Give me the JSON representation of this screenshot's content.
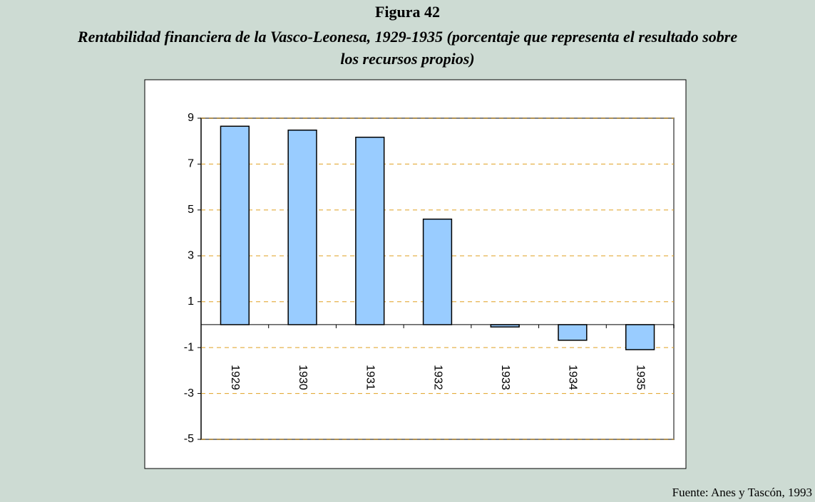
{
  "chart_data": {
    "type": "bar",
    "title": "Figura 42",
    "subtitle": "Rentabilidad financiera de la Vasco-Leonesa, 1929-1935 (porcentaje que representa el resultado sobre los recursos propios)",
    "source": "Fuente: Anes y Tascón, 1993",
    "categories": [
      "1929",
      "1930",
      "1931",
      "1932",
      "1933",
      "1934",
      "1935"
    ],
    "values": [
      8.65,
      8.48,
      8.17,
      4.6,
      -0.1,
      -0.68,
      -1.09
    ],
    "color": "#99ccff",
    "ylim": [
      -5,
      9
    ],
    "yticks": [
      -5,
      -3,
      -1,
      1,
      3,
      5,
      7,
      9
    ],
    "grid": true
  }
}
